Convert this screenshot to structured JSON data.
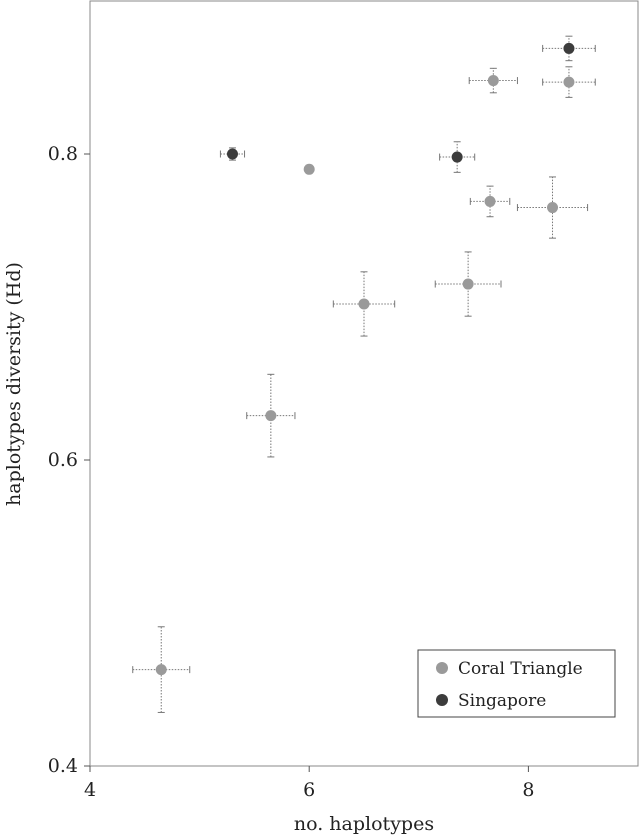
{
  "chart_data": {
    "type": "scatter",
    "title": "",
    "xlabel": "no. haplotypes",
    "ylabel": "haplotypes diversity (Hd)",
    "xlim": [
      4,
      9.0
    ],
    "ylim": [
      0.4,
      0.9
    ],
    "x_ticks": [
      4,
      6,
      8
    ],
    "y_ticks": [
      0.4,
      0.6,
      0.8
    ],
    "x_tick_labels": [
      "4",
      "6",
      "8"
    ],
    "y_tick_labels": [
      "0.4",
      "0.6",
      "0.8"
    ],
    "grid": false,
    "legend_position": "bottom-right",
    "error_bars": true,
    "series": [
      {
        "name": "Coral Triangle",
        "color": "#9a9a9a",
        "points": [
          {
            "x": 4.65,
            "y": 0.463,
            "xerr": 0.26,
            "yerr": 0.028
          },
          {
            "x": 5.65,
            "y": 0.629,
            "xerr": 0.22,
            "yerr": 0.027
          },
          {
            "x": 6.0,
            "y": 0.79,
            "xerr": 0,
            "yerr": 0
          },
          {
            "x": 6.5,
            "y": 0.702,
            "xerr": 0.28,
            "yerr": 0.021
          },
          {
            "x": 7.45,
            "y": 0.715,
            "xerr": 0.3,
            "yerr": 0.021
          },
          {
            "x": 7.65,
            "y": 0.769,
            "xerr": 0.18,
            "yerr": 0.01
          },
          {
            "x": 7.68,
            "y": 0.848,
            "xerr": 0.22,
            "yerr": 0.008
          },
          {
            "x": 8.22,
            "y": 0.765,
            "xerr": 0.32,
            "yerr": 0.02
          },
          {
            "x": 8.37,
            "y": 0.847,
            "xerr": 0.24,
            "yerr": 0.01
          }
        ]
      },
      {
        "name": "Singapore",
        "color": "#3c3c3c",
        "points": [
          {
            "x": 5.3,
            "y": 0.8,
            "xerr": 0.11,
            "yerr": 0.004
          },
          {
            "x": 7.35,
            "y": 0.798,
            "xerr": 0.16,
            "yerr": 0.01
          },
          {
            "x": 8.37,
            "y": 0.869,
            "xerr": 0.24,
            "yerr": 0.008
          }
        ]
      }
    ]
  }
}
